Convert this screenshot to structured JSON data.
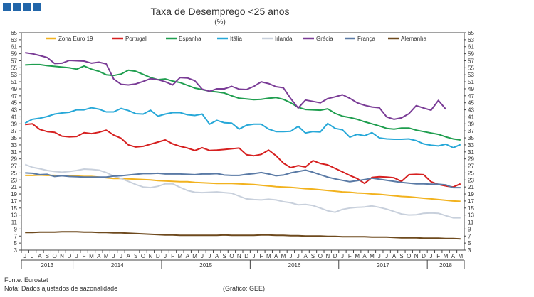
{
  "header": {
    "logo_colors": [
      "#2266aa",
      "#2266aa",
      "#2266aa",
      "#2266aa"
    ]
  },
  "chart_data": {
    "type": "line",
    "title": "Taxa de Desemprego <25 anos",
    "subtitle": "(%)",
    "ylim": [
      3,
      65
    ],
    "yticks": [
      3,
      5,
      7,
      9,
      11,
      13,
      15,
      17,
      19,
      21,
      23,
      25,
      27,
      29,
      31,
      33,
      35,
      37,
      39,
      41,
      43,
      45,
      47,
      49,
      51,
      53,
      55,
      57,
      59,
      61,
      63,
      65
    ],
    "x_month_labels": [
      "J",
      "J",
      "A",
      "S",
      "O",
      "N",
      "D",
      "J",
      "F",
      "M",
      "A",
      "M",
      "J",
      "J",
      "A",
      "S",
      "O",
      "N",
      "D",
      "J",
      "F",
      "M",
      "A",
      "M",
      "J",
      "J",
      "A",
      "S",
      "O",
      "N",
      "D",
      "J",
      "F",
      "M",
      "A",
      "M",
      "J",
      "J",
      "A",
      "S",
      "O",
      "N",
      "D",
      "J",
      "F",
      "M",
      "A",
      "M",
      "J",
      "J",
      "A",
      "S",
      "O",
      "N",
      "D",
      "J",
      "F",
      "M",
      "A",
      "M"
    ],
    "x_year_labels": [
      {
        "label": "2013",
        "start": 0,
        "end": 6
      },
      {
        "label": "2014",
        "start": 7,
        "end": 18
      },
      {
        "label": "2015",
        "start": 19,
        "end": 30
      },
      {
        "label": "2016",
        "start": 31,
        "end": 42
      },
      {
        "label": "2017",
        "start": 43,
        "end": 54
      },
      {
        "label": "2018",
        "start": 55,
        "end": 59
      }
    ],
    "grid": false,
    "legend_position": "top",
    "series": [
      {
        "name": "Zona Euro 19",
        "color": "#f2b21e",
        "values": [
          24.3,
          24.3,
          24.4,
          24.3,
          24.3,
          24.2,
          24.1,
          24.1,
          24.0,
          24.0,
          23.8,
          23.6,
          23.4,
          23.4,
          23.3,
          23.2,
          23.1,
          23.0,
          22.8,
          22.7,
          22.6,
          22.5,
          22.5,
          22.3,
          22.2,
          22.1,
          22.0,
          22.0,
          22.0,
          21.9,
          21.8,
          21.7,
          21.5,
          21.3,
          21.1,
          21.0,
          20.9,
          20.7,
          20.5,
          20.4,
          20.2,
          20.0,
          19.8,
          19.6,
          19.5,
          19.3,
          19.2,
          19.0,
          18.9,
          18.7,
          18.5,
          18.3,
          18.2,
          18.0,
          17.8,
          17.6,
          17.4,
          17.2,
          17.0,
          16.9
        ]
      },
      {
        "name": "Portugal",
        "color": "#d62020",
        "values": [
          38.8,
          39.0,
          37.4,
          36.8,
          36.6,
          35.5,
          35.3,
          35.4,
          36.5,
          36.2,
          36.6,
          37.2,
          35.8,
          34.9,
          33.0,
          32.4,
          32.6,
          33.2,
          33.8,
          34.4,
          33.3,
          32.6,
          32.1,
          31.4,
          32.2,
          31.4,
          31.5,
          31.7,
          31.9,
          32.1,
          30.2,
          29.9,
          30.3,
          31.5,
          29.9,
          27.8,
          26.5,
          27.1,
          26.7,
          28.5,
          27.7,
          27.3,
          26.3,
          25.3,
          24.3,
          23.4,
          22.0,
          23.7,
          23.9,
          23.8,
          23.6,
          22.6,
          24.5,
          24.6,
          24.5,
          22.5,
          21.7,
          21.3,
          21.0,
          21.9
        ]
      },
      {
        "name": "Espanha",
        "color": "#1f9e4f",
        "values": [
          55.8,
          55.9,
          55.9,
          55.6,
          55.4,
          55.2,
          55.0,
          54.6,
          55.5,
          54.6,
          54.0,
          53.0,
          52.8,
          53.2,
          54.3,
          54.0,
          53.1,
          52.2,
          51.6,
          51.8,
          51.2,
          50.8,
          50.0,
          49.2,
          48.8,
          48.3,
          48.1,
          47.8,
          47.0,
          46.3,
          46.1,
          45.9,
          46.0,
          46.3,
          46.5,
          46.0,
          45.0,
          43.7,
          43.1,
          43.0,
          42.9,
          43.3,
          42.0,
          41.2,
          40.8,
          40.3,
          39.6,
          39.0,
          38.4,
          37.7,
          37.5,
          37.8,
          37.8,
          37.2,
          36.8,
          36.4,
          36.0,
          35.3,
          34.7,
          34.4
        ]
      },
      {
        "name": "Itália",
        "color": "#27a8d8",
        "values": [
          39.2,
          40.3,
          40.6,
          41.1,
          41.8,
          42.1,
          42.3,
          43.0,
          43.0,
          43.6,
          43.2,
          42.4,
          42.4,
          43.4,
          42.8,
          41.9,
          41.8,
          42.9,
          41.2,
          41.8,
          42.2,
          42.2,
          41.6,
          41.4,
          41.8,
          38.9,
          40.0,
          39.3,
          39.2,
          37.5,
          38.6,
          38.9,
          38.9,
          37.5,
          36.8,
          36.8,
          36.9,
          38.3,
          36.4,
          36.8,
          36.7,
          39.1,
          37.7,
          37.3,
          35.2,
          36.0,
          35.6,
          36.5,
          35.0,
          34.7,
          34.6,
          34.6,
          34.7,
          34.2,
          33.3,
          32.9,
          32.7,
          33.2,
          32.2,
          33.1
        ]
      },
      {
        "name": "Irlanda",
        "color": "#c8d0dc",
        "values": [
          27.4,
          26.6,
          26.2,
          25.7,
          25.4,
          25.2,
          25.4,
          25.7,
          26.1,
          26.0,
          25.8,
          25.1,
          24.1,
          23.4,
          22.6,
          21.7,
          21.0,
          20.8,
          21.2,
          21.9,
          21.9,
          20.9,
          20.0,
          19.5,
          19.4,
          19.5,
          19.6,
          19.4,
          19.2,
          18.4,
          17.6,
          17.4,
          17.3,
          17.5,
          17.3,
          16.8,
          16.5,
          15.9,
          16.0,
          15.7,
          15.0,
          14.2,
          13.8,
          14.6,
          15.0,
          15.2,
          15.3,
          15.6,
          15.2,
          14.7,
          14.0,
          13.3,
          13.0,
          13.1,
          13.5,
          13.6,
          13.5,
          12.8,
          12.2,
          12.2
        ]
      },
      {
        "name": "Grécia",
        "color": "#7a3c96",
        "values": [
          59.3,
          59.0,
          58.5,
          57.9,
          56.2,
          56.3,
          57.1,
          57.0,
          56.9,
          56.3,
          56.6,
          56.1,
          51.8,
          50.3,
          50.1,
          50.4,
          51.1,
          51.9,
          51.6,
          51.0,
          50.1,
          52.2,
          52.1,
          51.3,
          48.9,
          48.3,
          49.0,
          49.0,
          49.7,
          48.9,
          48.8,
          49.7,
          51.0,
          50.5,
          49.6,
          49.3,
          46.2,
          43.5,
          45.8,
          45.4,
          45.0,
          46.2,
          46.7,
          47.3,
          46.3,
          45.0,
          44.3,
          43.8,
          43.6,
          41.0,
          40.3,
          40.7,
          41.9,
          44.2,
          43.5,
          42.9,
          45.7,
          43.2
        ]
      },
      {
        "name": "França",
        "color": "#5a7aa5",
        "values": [
          25.0,
          24.9,
          24.5,
          24.6,
          24.0,
          24.2,
          24.0,
          23.9,
          23.8,
          23.8,
          23.8,
          23.8,
          24.1,
          24.2,
          24.4,
          24.6,
          24.8,
          24.8,
          24.9,
          24.7,
          24.7,
          24.7,
          24.6,
          24.5,
          24.7,
          24.7,
          24.8,
          24.4,
          24.3,
          24.3,
          24.6,
          24.8,
          25.1,
          24.7,
          24.2,
          24.4,
          25.0,
          25.4,
          25.8,
          25.2,
          24.5,
          23.8,
          23.3,
          22.9,
          22.5,
          22.8,
          23.1,
          23.5,
          23.2,
          22.9,
          22.6,
          22.3,
          22.1,
          21.9,
          21.9,
          21.8,
          21.8,
          21.6,
          20.8,
          20.8
        ]
      },
      {
        "name": "Alemanha",
        "color": "#6e4a1e",
        "values": [
          8.0,
          8.0,
          8.1,
          8.1,
          8.1,
          8.2,
          8.2,
          8.2,
          8.1,
          8.1,
          8.0,
          8.0,
          7.9,
          7.9,
          7.8,
          7.7,
          7.6,
          7.5,
          7.4,
          7.3,
          7.3,
          7.2,
          7.2,
          7.2,
          7.2,
          7.2,
          7.2,
          7.3,
          7.2,
          7.2,
          7.2,
          7.2,
          7.3,
          7.3,
          7.2,
          7.2,
          7.1,
          7.1,
          7.0,
          7.0,
          7.0,
          6.9,
          6.9,
          6.8,
          6.8,
          6.8,
          6.8,
          6.7,
          6.7,
          6.7,
          6.6,
          6.5,
          6.5,
          6.5,
          6.4,
          6.4,
          6.4,
          6.3,
          6.3,
          6.2
        ]
      }
    ]
  },
  "footer": {
    "source": "Fonte: Eurostat",
    "note": "Nota: Dados ajustados de sazonalidade",
    "credit": "(Gráfico: GEE)"
  }
}
